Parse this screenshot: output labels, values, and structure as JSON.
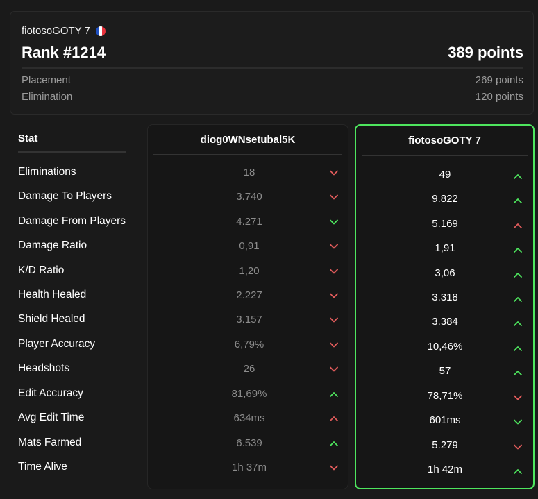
{
  "header": {
    "player_name": "fiotosoGOTY 7",
    "country_flag_icon": "france-flag-icon",
    "rank": "Rank #1214",
    "total_points": "389 points",
    "breakdown": [
      {
        "label": "Placement",
        "value": "269 points"
      },
      {
        "label": "Elimination",
        "value": "120 points"
      }
    ]
  },
  "table": {
    "stat_header": "Stat",
    "stats": [
      "Eliminations",
      "Damage To Players",
      "Damage From Players",
      "Damage Ratio",
      "K/D Ratio",
      "Health Healed",
      "Shield Healed",
      "Player Accuracy",
      "Headshots",
      "Edit Accuracy",
      "Avg Edit Time",
      "Mats Farmed",
      "Time Alive"
    ],
    "opponent": {
      "name": "diog0WNsetubal5K",
      "values": [
        "18",
        "3.740",
        "4.271",
        "0,91",
        "1,20",
        "2.227",
        "3.157",
        "6,79%",
        "26",
        "81,69%",
        "634ms",
        "6.539",
        "1h 37m"
      ],
      "trends": [
        {
          "dir": "down",
          "color": "#e05b5b"
        },
        {
          "dir": "down",
          "color": "#e05b5b"
        },
        {
          "dir": "down",
          "color": "#4ee65e"
        },
        {
          "dir": "down",
          "color": "#e05b5b"
        },
        {
          "dir": "down",
          "color": "#e05b5b"
        },
        {
          "dir": "down",
          "color": "#e05b5b"
        },
        {
          "dir": "down",
          "color": "#e05b5b"
        },
        {
          "dir": "down",
          "color": "#e05b5b"
        },
        {
          "dir": "down",
          "color": "#e05b5b"
        },
        {
          "dir": "up",
          "color": "#4ee65e"
        },
        {
          "dir": "up",
          "color": "#e05b5b"
        },
        {
          "dir": "up",
          "color": "#4ee65e"
        },
        {
          "dir": "down",
          "color": "#e05b5b"
        }
      ]
    },
    "self": {
      "name": "fiotosoGOTY 7",
      "values": [
        "49",
        "9.822",
        "5.169",
        "1,91",
        "3,06",
        "3.318",
        "3.384",
        "10,46%",
        "57",
        "78,71%",
        "601ms",
        "5.279",
        "1h 42m"
      ],
      "trends": [
        {
          "dir": "up",
          "color": "#4ee65e"
        },
        {
          "dir": "up",
          "color": "#4ee65e"
        },
        {
          "dir": "up",
          "color": "#e05b5b"
        },
        {
          "dir": "up",
          "color": "#4ee65e"
        },
        {
          "dir": "up",
          "color": "#4ee65e"
        },
        {
          "dir": "up",
          "color": "#4ee65e"
        },
        {
          "dir": "up",
          "color": "#4ee65e"
        },
        {
          "dir": "up",
          "color": "#4ee65e"
        },
        {
          "dir": "up",
          "color": "#4ee65e"
        },
        {
          "dir": "down",
          "color": "#e05b5b"
        },
        {
          "dir": "down",
          "color": "#4ee65e"
        },
        {
          "dir": "down",
          "color": "#e05b5b"
        },
        {
          "dir": "up",
          "color": "#4ee65e"
        }
      ]
    }
  },
  "colors": {
    "accent_green": "#4ee65e",
    "accent_red": "#e05b5b",
    "background": "#1a1a1a"
  }
}
